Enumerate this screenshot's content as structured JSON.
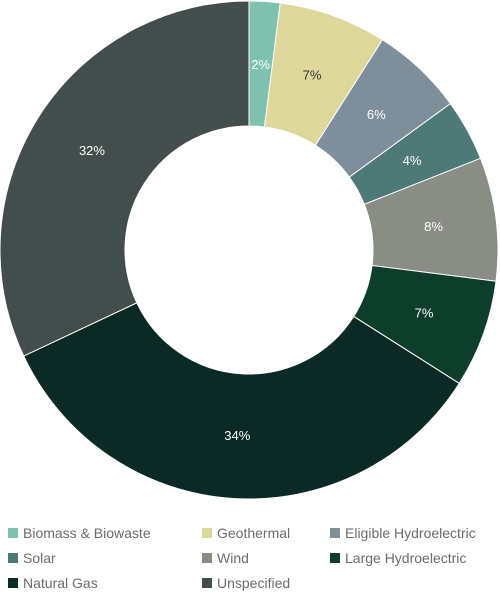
{
  "chart_data": {
    "type": "pie",
    "donut": true,
    "title": "",
    "categories": [
      "Biomass & Biowaste",
      "Geothermal",
      "Eligible Hydroelectric",
      "Solar",
      "Wind",
      "Large Hydroelectric",
      "Natural Gas",
      "Unspecified"
    ],
    "values": [
      2,
      7,
      6,
      4,
      8,
      7,
      34,
      32
    ],
    "labels": [
      "2%",
      "7%",
      "6%",
      "4%",
      "8%",
      "7%",
      "34%",
      "32%"
    ],
    "colors": [
      "#7dc1ae",
      "#ddd89a",
      "#7e8f9b",
      "#4d7a76",
      "#8a8c86",
      "#0d3d2b",
      "#0b2a25",
      "#434d4b"
    ],
    "label_colors": [
      "#ffffff",
      "#333333",
      "#ffffff",
      "#ffffff",
      "#ffffff",
      "#ffffff",
      "#ffffff",
      "#ffffff"
    ],
    "legend_position": "bottom"
  }
}
